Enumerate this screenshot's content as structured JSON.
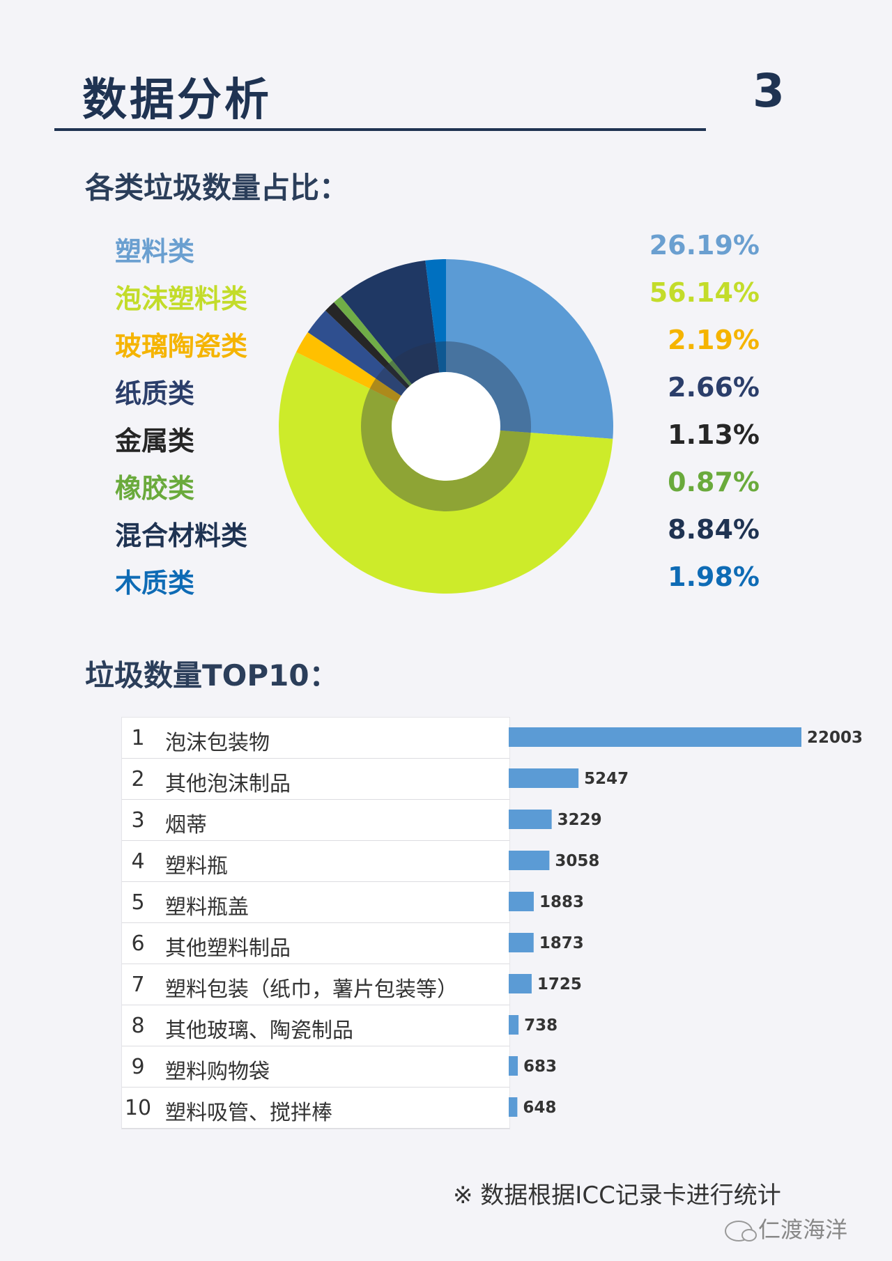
{
  "header": {
    "title": "数据分析",
    "page_number": "3"
  },
  "section1": {
    "title": "各类垃圾数量占比："
  },
  "section2": {
    "title": "垃圾数量TOP10："
  },
  "colors": {
    "plastic": "#5b9bd5",
    "foam": "#cdeb2a",
    "glass": "#ffc000",
    "paper": "#2f4f8f",
    "metal": "#262626",
    "rubber": "#70ad47",
    "mixed": "#1f3864",
    "wood": "#0070c0",
    "bar": "#5b9bd5"
  },
  "chart_data": [
    {
      "type": "pie",
      "title": "各类垃圾数量占比：",
      "slices": [
        {
          "label": "塑料类",
          "pct_label": "26.19%",
          "value": 26.19,
          "color": "#5b9bd5",
          "text_color": "#6a9fd0"
        },
        {
          "label": "泡沫塑料类",
          "pct_label": "56.14%",
          "value": 56.14,
          "color": "#cdeb2a",
          "text_color": "#c3dc2a"
        },
        {
          "label": "玻璃陶瓷类",
          "pct_label": "2.19%",
          "value": 2.19,
          "color": "#ffc000",
          "text_color": "#f5b400"
        },
        {
          "label": "纸质类",
          "pct_label": "2.66%",
          "value": 2.66,
          "color": "#2f4f8f",
          "text_color": "#2b3e6a"
        },
        {
          "label": "金属类",
          "pct_label": "1.13%",
          "value": 1.13,
          "color": "#262626",
          "text_color": "#262626"
        },
        {
          "label": "橡胶类",
          "pct_label": "0.87%",
          "value": 0.87,
          "color": "#70ad47",
          "text_color": "#6aaa3c"
        },
        {
          "label": "混合材料类",
          "pct_label": "8.84%",
          "value": 8.84,
          "color": "#1f3864",
          "text_color": "#1f3352"
        },
        {
          "label": "木质类",
          "pct_label": "1.98%",
          "value": 1.98,
          "color": "#0070c0",
          "text_color": "#0e6bb5"
        }
      ]
    },
    {
      "type": "bar",
      "orientation": "horizontal",
      "title": "垃圾数量TOP10：",
      "categories": [
        "泡沫包装物",
        "其他泡沫制品",
        "烟蒂",
        "塑料瓶",
        "塑料瓶盖",
        "其他塑料制品",
        "塑料包装（纸巾，薯片包装等）",
        "其他玻璃、陶瓷制品",
        "塑料购物袋",
        "塑料吸管、搅拌棒"
      ],
      "ranks": [
        "1",
        "2",
        "3",
        "4",
        "5",
        "6",
        "7",
        "8",
        "9",
        "10"
      ],
      "values": [
        22003,
        5247,
        3229,
        3058,
        1883,
        1873,
        1725,
        738,
        683,
        648
      ],
      "value_labels": [
        "22003",
        "5247",
        "3229",
        "3058",
        "1883",
        "1873",
        "1725",
        "738",
        "683",
        "648"
      ],
      "xlim": [
        0,
        22003
      ]
    }
  ],
  "footer": {
    "note": "※ 数据根据ICC记录卡进行统计",
    "watermark": "仁渡海洋"
  }
}
